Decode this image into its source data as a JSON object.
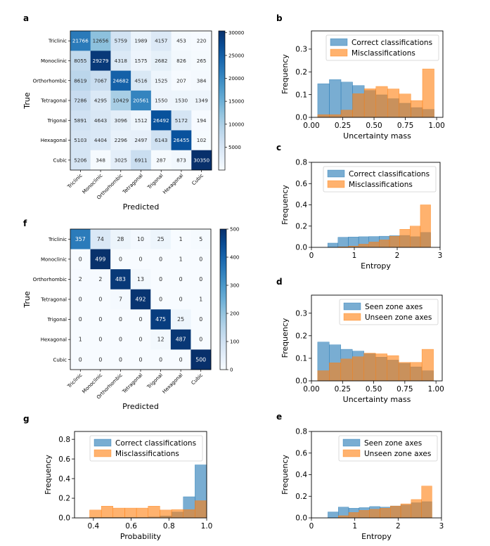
{
  "chart_data": [
    {
      "panel": "a",
      "type": "heatmap",
      "xlabel": "Predicted",
      "ylabel": "True",
      "classes": [
        "Triclinic",
        "Monoclinic",
        "Orthorhombic",
        "Tetragonal",
        "Trigonal",
        "Hexagonal",
        "Cubic"
      ],
      "values": [
        [
          21766,
          12656,
          5759,
          1989,
          4157,
          453,
          220
        ],
        [
          8055,
          29279,
          4318,
          1575,
          2682,
          826,
          265
        ],
        [
          8619,
          7067,
          24682,
          4516,
          1525,
          207,
          384
        ],
        [
          7286,
          4295,
          10429,
          20561,
          1550,
          1530,
          1349
        ],
        [
          5891,
          4643,
          3096,
          1512,
          26492,
          5172,
          194
        ],
        [
          5103,
          4404,
          2296,
          2497,
          6143,
          26455,
          102
        ],
        [
          5206,
          348,
          3025,
          6911,
          287,
          873,
          30350
        ]
      ],
      "colorbar": {
        "min": 0,
        "max": 30350,
        "ticks": [
          "5000",
          "10000",
          "15000",
          "20000",
          "25000",
          "30000"
        ]
      }
    },
    {
      "panel": "f",
      "type": "heatmap",
      "xlabel": "Predicted",
      "ylabel": "True",
      "classes": [
        "Triclinic",
        "Monoclinic",
        "Orthorhombic",
        "Tetragonal",
        "Trigonal",
        "Hexagonal",
        "Cubic"
      ],
      "values": [
        [
          357,
          74,
          28,
          10,
          25,
          1,
          5
        ],
        [
          0,
          499,
          0,
          0,
          0,
          1,
          0
        ],
        [
          2,
          2,
          483,
          13,
          0,
          0,
          0
        ],
        [
          0,
          0,
          7,
          492,
          0,
          0,
          1
        ],
        [
          0,
          0,
          0,
          0,
          475,
          25,
          0
        ],
        [
          1,
          0,
          0,
          0,
          12,
          487,
          0
        ],
        [
          0,
          0,
          0,
          0,
          0,
          0,
          500
        ]
      ],
      "colorbar": {
        "min": 0,
        "max": 500,
        "ticks": [
          "0",
          "100",
          "200",
          "300",
          "400",
          "500"
        ]
      }
    },
    {
      "panel": "b",
      "type": "histogram",
      "xlabel": "Uncertainty mass",
      "ylabel": "Frequency",
      "xlim": [
        0,
        1.05
      ],
      "ylim": [
        0,
        0.38
      ],
      "xticks": [
        "0.00",
        "0.25",
        "0.50",
        "0.75",
        "1.00"
      ],
      "yticks": [
        "0.0",
        "0.1",
        "0.2",
        "0.3"
      ],
      "legend": "top-right",
      "bin_edges": [
        0.05,
        0.143,
        0.236,
        0.329,
        0.422,
        0.515,
        0.608,
        0.701,
        0.794,
        0.887,
        0.98
      ],
      "series": [
        {
          "name": "Correct classifications",
          "values": [
            0.148,
            0.166,
            0.155,
            0.14,
            0.118,
            0.099,
            0.082,
            0.062,
            0.043,
            0.035
          ]
        },
        {
          "name": "Misclassifications",
          "values": [
            0.012,
            0.012,
            0.032,
            0.104,
            0.126,
            0.136,
            0.125,
            0.103,
            0.074,
            0.213
          ]
        }
      ]
    },
    {
      "panel": "c",
      "type": "histogram",
      "xlabel": "Entropy",
      "ylabel": "Frequency",
      "xlim": [
        0,
        3
      ],
      "ylim": [
        0,
        0.8
      ],
      "xticks": [
        "0",
        "1",
        "2",
        "3"
      ],
      "yticks": [
        "0.0",
        "0.2",
        "0.4",
        "0.6",
        "0.8"
      ],
      "legend": "top-right",
      "bin_edges": [
        0.38,
        0.62,
        0.86,
        1.1,
        1.34,
        1.58,
        1.82,
        2.06,
        2.3,
        2.54,
        2.78
      ],
      "series": [
        {
          "name": "Correct classifications",
          "values": [
            0.04,
            0.095,
            0.098,
            0.1,
            0.102,
            0.105,
            0.11,
            0.112,
            0.1,
            0.14
          ]
        },
        {
          "name": "Misclassifications",
          "values": [
            0.0,
            0.005,
            0.012,
            0.03,
            0.05,
            0.07,
            0.105,
            0.17,
            0.2,
            0.4
          ]
        }
      ]
    },
    {
      "panel": "d",
      "type": "histogram",
      "xlabel": "Uncertainty mass",
      "ylabel": "Frequency",
      "xlim": [
        0,
        1.05
      ],
      "ylim": [
        0,
        0.38
      ],
      "xticks": [
        "0.00",
        "0.25",
        "0.50",
        "0.75",
        "1.00"
      ],
      "yticks": [
        "0.0",
        "0.1",
        "0.2",
        "0.3"
      ],
      "legend": "top-right",
      "bin_edges": [
        0.05,
        0.143,
        0.236,
        0.329,
        0.422,
        0.515,
        0.608,
        0.701,
        0.794,
        0.887,
        0.98
      ],
      "series": [
        {
          "name": "Seen zone axes",
          "values": [
            0.172,
            0.16,
            0.14,
            0.132,
            0.12,
            0.105,
            0.092,
            0.078,
            0.062,
            0.045
          ]
        },
        {
          "name": "Unseen zone axes",
          "values": [
            0.045,
            0.08,
            0.097,
            0.107,
            0.123,
            0.12,
            0.112,
            0.082,
            0.082,
            0.14
          ]
        }
      ]
    },
    {
      "panel": "e",
      "type": "histogram",
      "xlabel": "Entropy",
      "ylabel": "Frequency",
      "xlim": [
        0,
        3
      ],
      "ylim": [
        0,
        0.8
      ],
      "xticks": [
        "0",
        "1",
        "2",
        "3"
      ],
      "yticks": [
        "0.0",
        "0.2",
        "0.4",
        "0.6",
        "0.8"
      ],
      "legend": "top-right",
      "bin_edges": [
        0.38,
        0.62,
        0.86,
        1.1,
        1.34,
        1.58,
        1.82,
        2.06,
        2.3,
        2.54,
        2.78
      ],
      "series": [
        {
          "name": "Seen zone axes",
          "values": [
            0.055,
            0.1,
            0.09,
            0.095,
            0.105,
            0.1,
            0.11,
            0.12,
            0.14,
            0.15
          ]
        },
        {
          "name": "Unseen zone axes",
          "values": [
            0.0,
            0.02,
            0.05,
            0.07,
            0.08,
            0.09,
            0.11,
            0.13,
            0.17,
            0.295
          ]
        }
      ]
    },
    {
      "panel": "g",
      "type": "histogram",
      "xlabel": "Probability",
      "ylabel": "Frequency",
      "xlim": [
        0.3,
        1.0
      ],
      "ylim": [
        0,
        0.88
      ],
      "xticks": [
        "0.4",
        "0.6",
        "0.8",
        "1.0"
      ],
      "yticks": [
        "0.0",
        "0.2",
        "0.4",
        "0.6",
        "0.8"
      ],
      "legend": "top-right",
      "bin_edges": [
        0.38,
        0.442,
        0.504,
        0.566,
        0.628,
        0.69,
        0.752,
        0.814,
        0.876,
        0.938,
        1.0
      ],
      "series": [
        {
          "name": "Correct classifications",
          "values": [
            0.005,
            0.005,
            0.005,
            0.005,
            0.005,
            0.01,
            0.02,
            0.06,
            0.215,
            0.54
          ]
        },
        {
          "name": "Misclassifications",
          "values": [
            0.08,
            0.12,
            0.1,
            0.1,
            0.1,
            0.12,
            0.08,
            0.085,
            0.085,
            0.175
          ]
        }
      ]
    }
  ]
}
